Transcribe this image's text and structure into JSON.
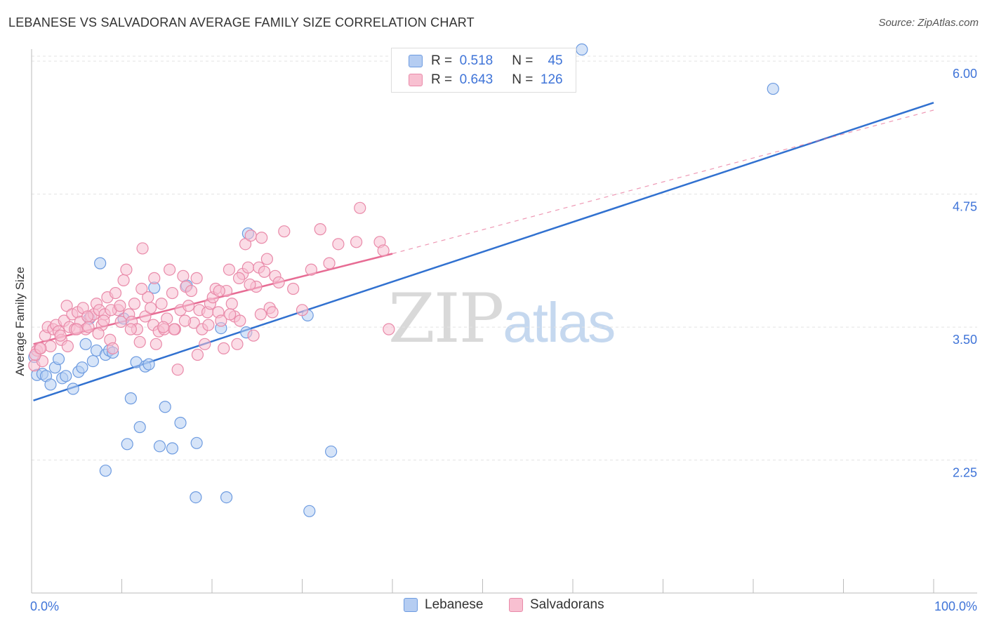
{
  "header": {
    "title": "LEBANESE VS SALVADORAN AVERAGE FAMILY SIZE CORRELATION CHART",
    "source": "Source: ZipAtlas.com"
  },
  "watermark": {
    "zip": "ZIP",
    "atlas": "atlas"
  },
  "legend": {
    "r_label": "R =",
    "n_label": "N =",
    "rows": [
      {
        "r": "0.518",
        "n": "45"
      },
      {
        "r": "0.643",
        "n": "126"
      }
    ]
  },
  "colors": {
    "blue_fill": "#b5cdf2",
    "blue_stroke": "#6d9be0",
    "blue_line": "#3171d0",
    "pink_fill": "#f8c0d1",
    "pink_stroke": "#e98aa9",
    "pink_line": "#e76c94",
    "axis_label": "#3f74d8"
  },
  "chart_data": {
    "type": "scatter",
    "title": "LEBANESE VS SALVADORAN AVERAGE FAMILY SIZE CORRELATION CHART",
    "xlabel": "",
    "ylabel": "Average Family Size",
    "xlim": [
      0,
      100
    ],
    "ylim": [
      1.0,
      6.1
    ],
    "x_tick_labels": [
      "0.0%",
      "100.0%"
    ],
    "y_ticks": [
      2.25,
      3.5,
      4.75,
      6.0
    ],
    "y_tick_labels": [
      "2.25",
      "3.50",
      "4.75",
      "6.00"
    ],
    "grid": true,
    "legend_position": "top-center",
    "series": [
      {
        "name": "Lebanese",
        "r": 0.518,
        "n": 45,
        "trend": {
          "x0": 0.2,
          "y0": 2.81,
          "x1": 100,
          "y1": 5.61,
          "extend_to": 100
        },
        "points": [
          [
            0.3,
            3.22
          ],
          [
            0.6,
            3.05
          ],
          [
            1.2,
            3.06
          ],
          [
            1.6,
            3.04
          ],
          [
            2.1,
            2.96
          ],
          [
            2.6,
            3.12
          ],
          [
            3.0,
            3.2
          ],
          [
            3.4,
            3.02
          ],
          [
            3.8,
            3.04
          ],
          [
            4.6,
            2.92
          ],
          [
            5.2,
            3.08
          ],
          [
            5.6,
            3.12
          ],
          [
            6.0,
            3.34
          ],
          [
            6.4,
            3.58
          ],
          [
            6.8,
            3.18
          ],
          [
            7.2,
            3.28
          ],
          [
            7.6,
            4.1
          ],
          [
            8.2,
            3.24
          ],
          [
            8.6,
            3.28
          ],
          [
            9.0,
            3.26
          ],
          [
            10.2,
            3.58
          ],
          [
            10.6,
            2.4
          ],
          [
            11.0,
            2.83
          ],
          [
            11.6,
            3.17
          ],
          [
            12.0,
            2.56
          ],
          [
            12.6,
            3.13
          ],
          [
            13.0,
            3.15
          ],
          [
            13.6,
            3.87
          ],
          [
            14.2,
            2.38
          ],
          [
            14.8,
            2.75
          ],
          [
            15.6,
            2.36
          ],
          [
            16.5,
            2.6
          ],
          [
            17.2,
            3.89
          ],
          [
            18.2,
            1.9
          ],
          [
            18.3,
            2.41
          ],
          [
            21.0,
            3.49
          ],
          [
            21.6,
            1.9
          ],
          [
            23.8,
            3.45
          ],
          [
            24.0,
            4.38
          ],
          [
            30.6,
            3.61
          ],
          [
            30.8,
            1.77
          ],
          [
            33.2,
            2.33
          ],
          [
            61.0,
            6.11
          ],
          [
            82.2,
            5.74
          ],
          [
            8.2,
            2.15
          ]
        ]
      },
      {
        "name": "Salvadorans",
        "r": 0.643,
        "n": 126,
        "trend": {
          "x0": 0.2,
          "y0": 3.34,
          "x1": 40,
          "y1": 4.19,
          "extend_to": 100,
          "y_extend": 5.54
        },
        "points": [
          [
            0.3,
            3.14
          ],
          [
            0.6,
            3.28
          ],
          [
            0.9,
            3.3
          ],
          [
            1.2,
            3.18
          ],
          [
            1.5,
            3.42
          ],
          [
            1.8,
            3.5
          ],
          [
            2.1,
            3.32
          ],
          [
            2.4,
            3.48
          ],
          [
            2.7,
            3.52
          ],
          [
            3.0,
            3.46
          ],
          [
            3.3,
            3.38
          ],
          [
            3.6,
            3.56
          ],
          [
            3.9,
            3.7
          ],
          [
            4.2,
            3.5
          ],
          [
            4.5,
            3.62
          ],
          [
            4.8,
            3.48
          ],
          [
            5.1,
            3.64
          ],
          [
            5.4,
            3.55
          ],
          [
            5.7,
            3.68
          ],
          [
            6.0,
            3.48
          ],
          [
            6.3,
            3.5
          ],
          [
            6.6,
            3.6
          ],
          [
            6.9,
            3.62
          ],
          [
            7.2,
            3.72
          ],
          [
            7.5,
            3.66
          ],
          [
            7.8,
            3.52
          ],
          [
            8.1,
            3.62
          ],
          [
            8.4,
            3.78
          ],
          [
            8.7,
            3.38
          ],
          [
            9.0,
            3.3
          ],
          [
            9.3,
            3.82
          ],
          [
            9.6,
            3.66
          ],
          [
            9.9,
            3.55
          ],
          [
            10.2,
            3.94
          ],
          [
            10.5,
            4.04
          ],
          [
            10.8,
            3.62
          ],
          [
            11.1,
            3.55
          ],
          [
            11.4,
            3.72
          ],
          [
            11.7,
            3.48
          ],
          [
            12.0,
            3.36
          ],
          [
            12.3,
            4.24
          ],
          [
            12.6,
            3.6
          ],
          [
            12.9,
            3.78
          ],
          [
            13.2,
            3.68
          ],
          [
            13.5,
            3.52
          ],
          [
            13.8,
            3.34
          ],
          [
            14.1,
            3.46
          ],
          [
            14.4,
            3.72
          ],
          [
            14.7,
            3.48
          ],
          [
            15.0,
            3.58
          ],
          [
            15.3,
            4.04
          ],
          [
            15.6,
            3.82
          ],
          [
            15.9,
            3.48
          ],
          [
            16.2,
            3.1
          ],
          [
            16.5,
            3.66
          ],
          [
            16.8,
            3.98
          ],
          [
            17.1,
            3.88
          ],
          [
            17.4,
            3.7
          ],
          [
            17.7,
            3.84
          ],
          [
            18.0,
            3.54
          ],
          [
            18.3,
            3.96
          ],
          [
            18.6,
            3.66
          ],
          [
            18.9,
            3.48
          ],
          [
            19.2,
            3.34
          ],
          [
            19.5,
            3.64
          ],
          [
            19.8,
            3.72
          ],
          [
            20.1,
            3.78
          ],
          [
            20.4,
            3.86
          ],
          [
            20.7,
            3.64
          ],
          [
            21.0,
            3.56
          ],
          [
            21.3,
            3.3
          ],
          [
            21.6,
            3.84
          ],
          [
            21.9,
            4.04
          ],
          [
            22.2,
            3.72
          ],
          [
            22.5,
            3.6
          ],
          [
            22.8,
            3.34
          ],
          [
            23.1,
            3.56
          ],
          [
            23.4,
            4.0
          ],
          [
            23.7,
            4.28
          ],
          [
            24.0,
            4.06
          ],
          [
            24.3,
            4.36
          ],
          [
            24.6,
            3.42
          ],
          [
            24.9,
            3.88
          ],
          [
            25.2,
            4.06
          ],
          [
            25.5,
            4.34
          ],
          [
            25.8,
            4.02
          ],
          [
            26.1,
            4.14
          ],
          [
            26.4,
            3.68
          ],
          [
            26.7,
            3.64
          ],
          [
            27.0,
            3.98
          ],
          [
            28.0,
            4.4
          ],
          [
            29.0,
            3.86
          ],
          [
            30.0,
            3.66
          ],
          [
            31.0,
            4.04
          ],
          [
            32.0,
            4.42
          ],
          [
            33.0,
            4.1
          ],
          [
            34.0,
            4.28
          ],
          [
            36.0,
            4.3
          ],
          [
            36.4,
            4.62
          ],
          [
            38.6,
            4.3
          ],
          [
            39.0,
            4.22
          ],
          [
            39.6,
            3.48
          ],
          [
            3.2,
            3.42
          ],
          [
            4.0,
            3.32
          ],
          [
            5.0,
            3.48
          ],
          [
            6.2,
            3.6
          ],
          [
            7.4,
            3.44
          ],
          [
            8.0,
            3.56
          ],
          [
            8.8,
            3.66
          ],
          [
            9.8,
            3.7
          ],
          [
            11.0,
            3.48
          ],
          [
            12.2,
            3.86
          ],
          [
            13.6,
            3.96
          ],
          [
            14.6,
            3.5
          ],
          [
            15.8,
            3.48
          ],
          [
            17.0,
            3.56
          ],
          [
            18.4,
            3.24
          ],
          [
            19.6,
            3.52
          ],
          [
            20.8,
            3.84
          ],
          [
            22.0,
            3.62
          ],
          [
            23.0,
            3.96
          ],
          [
            24.2,
            3.9
          ],
          [
            25.4,
            3.62
          ],
          [
            27.4,
            3.92
          ],
          [
            0.4,
            3.24
          ],
          [
            1.0,
            3.3
          ]
        ]
      }
    ]
  },
  "bottom_legend": {
    "items": [
      {
        "label": "Lebanese"
      },
      {
        "label": "Salvadorans"
      }
    ]
  }
}
